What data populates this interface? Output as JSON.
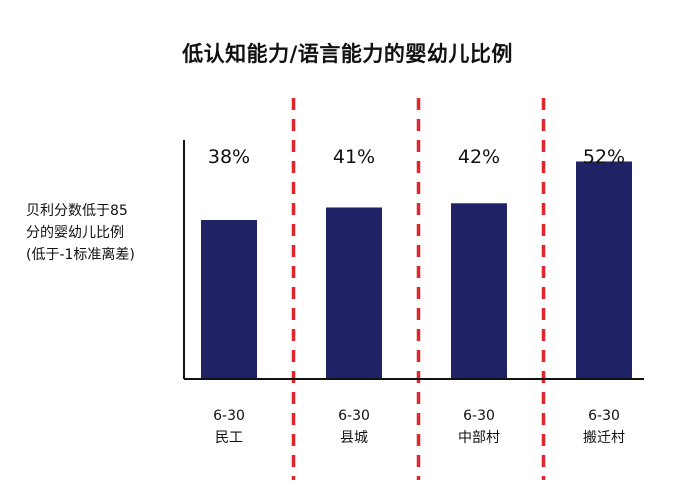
{
  "chart_data": {
    "type": "bar",
    "title": "低认知能力/语言能力的婴幼儿比例",
    "ylabel_lines": [
      "贝利分数低于85",
      "分的婴幼儿比例",
      "(低于-1标准离差)"
    ],
    "xlabel": "",
    "categories": [
      {
        "age": "6-30",
        "group": "民工"
      },
      {
        "age": "6-30",
        "group": "县城"
      },
      {
        "age": "6-30",
        "group": "中部村"
      },
      {
        "age": "6-30",
        "group": "搬迁村"
      }
    ],
    "values": [
      38,
      41,
      42,
      52
    ],
    "value_labels": [
      "38%",
      "41%",
      "42%",
      "52%"
    ],
    "ylim": [
      0,
      60
    ],
    "grid": false,
    "separators": "red-dashed-vertical-lines-between-groups",
    "colors": {
      "bar": "#1f2366",
      "separator": "#e0262a",
      "axis": "#111111"
    }
  }
}
